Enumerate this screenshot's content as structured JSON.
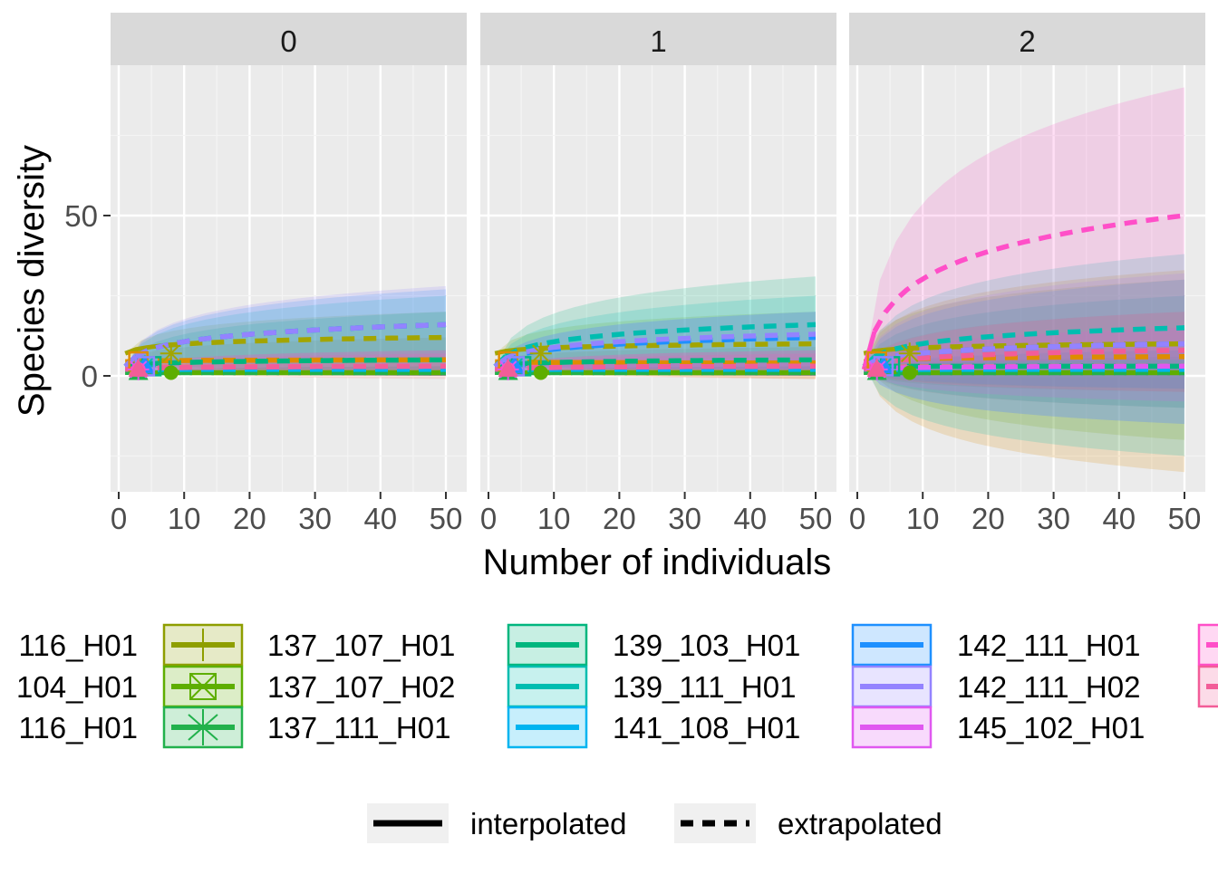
{
  "chart_data": {
    "type": "line",
    "ylabel": "Species diversity",
    "xlabel": "Number of individuals",
    "facets": [
      "0",
      "1",
      "2"
    ],
    "xlim": [
      -1,
      52
    ],
    "ylim": [
      -35,
      108
    ],
    "x_ticks": [
      0,
      10,
      20,
      30,
      40,
      50
    ],
    "y_ticks": [
      0,
      50
    ],
    "grid": true,
    "legend_position": "bottom",
    "linetype_legend": [
      {
        "label": "interpolated",
        "style": "solid"
      },
      {
        "label": "extrapolated",
        "style": "dashed"
      }
    ],
    "series_legend": [
      {
        "name": "116_H01",
        "color": "#F8766D",
        "partial": true
      },
      {
        "name": "104_H01",
        "color": "#DE8C00",
        "partial": true
      },
      {
        "name": "116_H01",
        "color": "#B79F00",
        "partial": true
      },
      {
        "name": "",
        "color": "#8E9E00",
        "glyph": "plus"
      },
      {
        "name": "",
        "color": "#5EAE00",
        "glyph": "boxx"
      },
      {
        "name": "",
        "color": "#22B14C",
        "glyph": "asterisk"
      },
      {
        "name": "137_107_H01",
        "color": "#00BA38"
      },
      {
        "name": "137_107_H02",
        "color": "#00C08B"
      },
      {
        "name": "137_111_H01",
        "color": "#00BFC4"
      },
      {
        "name": "",
        "color": "#00B67E"
      },
      {
        "name": "",
        "color": "#00BDB0"
      },
      {
        "name": "",
        "color": "#00B4F0"
      },
      {
        "name": "139_103_H01",
        "color": "#00B0F6"
      },
      {
        "name": "139_111_H01",
        "color": "#619CFF"
      },
      {
        "name": "141_108_H01",
        "color": "#B983FF"
      },
      {
        "name": "",
        "color": "#1E90FF"
      },
      {
        "name": "",
        "color": "#9483FF"
      },
      {
        "name": "",
        "color": "#E058F0"
      },
      {
        "name": "142_111_H01",
        "color": "#F564E3"
      },
      {
        "name": "142_111_H02",
        "color": "#FF61C3"
      },
      {
        "name": "145_102_H01",
        "color": "#E76BF3"
      },
      {
        "name": "",
        "color": "#FF4FC8",
        "partial": true
      },
      {
        "name": "",
        "color": "#F25D98",
        "partial": true
      }
    ],
    "series": [
      {
        "color": "#F8766D",
        "obs_n": 3,
        "obs_y": 2.5,
        "end_y": [
          3,
          3,
          3
        ],
        "ci_up": [
          6,
          5,
          20
        ],
        "ci_lo": [
          -1,
          -1,
          -10
        ]
      },
      {
        "color": "#DE8C00",
        "obs_n": 3,
        "obs_y": 4.5,
        "end_y": [
          5,
          4,
          6
        ],
        "ci_up": [
          12,
          9,
          33
        ],
        "ci_lo": [
          0,
          -1,
          -30
        ]
      },
      {
        "color": "#A3A500",
        "obs_n": 8,
        "obs_y": 7,
        "end_y": [
          12,
          10,
          10
        ],
        "ci_up": [
          20,
          20,
          30
        ],
        "ci_lo": [
          0,
          0,
          -20
        ]
      },
      {
        "color": "#5EAE00",
        "obs_n": 8,
        "obs_y": 1,
        "end_y": [
          1,
          1,
          1
        ],
        "ci_up": [
          3,
          3,
          8
        ],
        "ci_lo": [
          0,
          0,
          -5
        ]
      },
      {
        "color": "#22B14C",
        "obs_n": 3,
        "obs_y": 1,
        "end_y": [
          1,
          1,
          1
        ],
        "ci_up": [
          3,
          3,
          6
        ],
        "ci_lo": [
          0,
          0,
          -4
        ]
      },
      {
        "color": "#00B67E",
        "obs_n": 5,
        "obs_y": 3,
        "end_y": [
          5,
          5,
          3
        ],
        "ci_up": [
          20,
          31,
          25
        ],
        "ci_lo": [
          0,
          0,
          -10
        ]
      },
      {
        "color": "#00BDB0",
        "obs_n": 4,
        "obs_y": 3,
        "end_y": [
          16,
          16,
          15
        ],
        "ci_up": [
          25,
          25,
          38
        ],
        "ci_lo": [
          2,
          2,
          -25
        ]
      },
      {
        "color": "#00B4F0",
        "obs_n": 3,
        "obs_y": 2,
        "end_y": [
          2,
          2,
          2
        ],
        "ci_up": [
          5,
          5,
          8
        ],
        "ci_lo": [
          0,
          0,
          -4
        ]
      },
      {
        "color": "#1E90FF",
        "obs_n": 4,
        "obs_y": 3,
        "end_y": [
          16,
          12,
          10
        ],
        "ci_up": [
          27,
          20,
          30
        ],
        "ci_lo": [
          5,
          2,
          -15
        ]
      },
      {
        "color": "#9483FF",
        "obs_n": 4,
        "obs_y": 3,
        "end_y": [
          16,
          13,
          10
        ],
        "ci_up": [
          28,
          20,
          32
        ],
        "ci_lo": [
          5,
          2,
          -15
        ]
      },
      {
        "color": "#E058F0",
        "obs_n": 3,
        "obs_y": 2,
        "end_y": [
          3,
          3,
          3
        ],
        "ci_up": [
          8,
          8,
          15
        ],
        "ci_lo": [
          0,
          0,
          -8
        ]
      },
      {
        "color": "#FF4FC8",
        "obs_n": 3,
        "obs_y": 2,
        "end_y": [
          3,
          3,
          50
        ],
        "ci_up": [
          7,
          7,
          90
        ],
        "ci_lo": [
          0,
          0,
          5
        ]
      },
      {
        "color": "#F25D98",
        "obs_n": 3,
        "obs_y": 2,
        "end_y": [
          3,
          3,
          8
        ],
        "ci_up": [
          8,
          8,
          20
        ],
        "ci_lo": [
          0,
          0,
          -5
        ]
      }
    ]
  }
}
